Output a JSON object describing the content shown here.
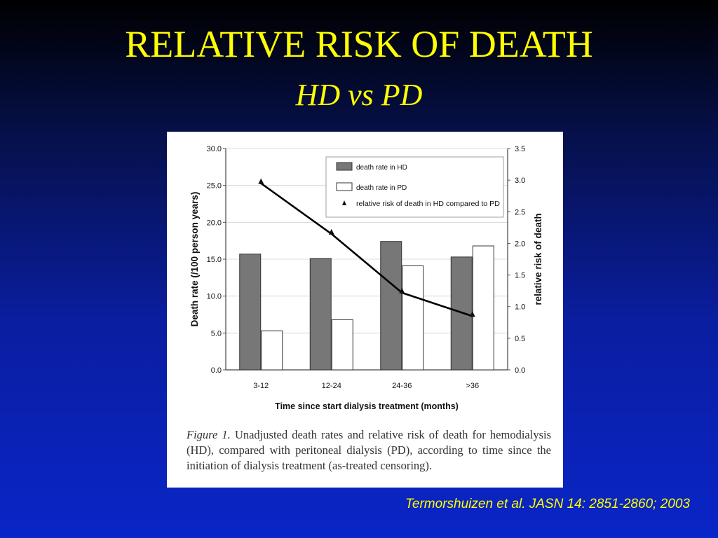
{
  "slide": {
    "title": "RELATIVE RISK OF DEATH",
    "subtitle": "HD vs PD",
    "citation": "Termorshuizen et al.  JASN 14: 2851-2860; 2003"
  },
  "figure": {
    "caption_label": "Figure 1.",
    "caption_text": " Unadjusted death rates and relative risk of death for hemodialysis (HD), compared with peritoneal dialysis (PD), according to time since the initiation of dialysis treatment (as-treated censoring)."
  },
  "colors": {
    "background_top": "#000000",
    "background_bottom": "#0a25c8",
    "title": "#ffff00",
    "hd_bar": "#777777",
    "pd_bar": "#ffffff",
    "line": "#000000"
  },
  "chart_data": {
    "type": "bar",
    "categories": [
      "3-12",
      "12-24",
      "24-36",
      ">36"
    ],
    "xlabel": "Time since start dialysis treatment (months)",
    "ylabel": "Death rate (/100 person years)",
    "y2label": "relative risk of death",
    "ylim": [
      0,
      30
    ],
    "y2lim": [
      0,
      3.5
    ],
    "yticks": [
      "0.0",
      "5.0",
      "10.0",
      "15.0",
      "20.0",
      "25.0",
      "30.0"
    ],
    "y2ticks": [
      "0.0",
      "0.5",
      "1.0",
      "1.5",
      "2.0",
      "2.5",
      "3.0",
      "3.5"
    ],
    "legend_position": "top-right",
    "series": [
      {
        "name": "death rate in HD",
        "type": "bar",
        "axis": "left",
        "values": [
          15.7,
          15.1,
          17.4,
          15.3
        ]
      },
      {
        "name": "death rate in PD",
        "type": "bar",
        "axis": "left",
        "values": [
          5.3,
          6.8,
          14.1,
          16.8
        ]
      },
      {
        "name": "relative risk of death in HD compared to PD",
        "type": "line",
        "axis": "right",
        "values": [
          2.95,
          2.15,
          1.22,
          0.85
        ]
      }
    ]
  }
}
